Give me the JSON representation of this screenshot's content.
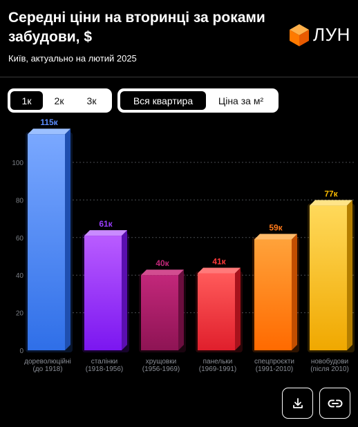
{
  "header": {
    "title": "Середні ціни на вторинці за роками забудови, $",
    "subtitle": "Київ, актуально на лютий 2025",
    "logo_text": "ЛУН"
  },
  "controls": {
    "rooms": [
      {
        "label": "1к",
        "active": true
      },
      {
        "label": "2к",
        "active": false
      },
      {
        "label": "3к",
        "active": false
      }
    ],
    "mode": [
      {
        "label": "Вся квартира",
        "active": true
      },
      {
        "label": "Ціна за м²",
        "active": false
      }
    ]
  },
  "actions": {
    "download_icon": "download-icon",
    "link_icon": "link-icon"
  },
  "chart_data": {
    "type": "bar",
    "categories": [
      [
        "дореволюційні",
        "(до 1918)"
      ],
      [
        "сталінки",
        "(1918-1956)"
      ],
      [
        "хрущовки",
        "(1956-1969)"
      ],
      [
        "панельки",
        "(1969-1991)"
      ],
      [
        "спецпроєкти",
        "(1991-2010)"
      ],
      [
        "новобудови",
        "(після 2010)"
      ]
    ],
    "values": [
      115,
      61,
      40,
      41,
      59,
      77
    ],
    "value_labels": [
      "115к",
      "61к",
      "40к",
      "41к",
      "59к",
      "77к"
    ],
    "colors": [
      {
        "top": "#7aa8ff",
        "bottom": "#2f6fe8",
        "side": "#1f4fb0",
        "cap": "#9cc0ff",
        "label": "#5b8dff"
      },
      {
        "top": "#b95cff",
        "bottom": "#7b16f0",
        "side": "#5a0fb0",
        "cap": "#c98bff",
        "label": "#9b3dff"
      },
      {
        "top": "#c2277a",
        "bottom": "#8e1454",
        "side": "#6a0e3e",
        "cap": "#d24d90",
        "label": "#c2277a"
      },
      {
        "top": "#ff5a5a",
        "bottom": "#e01f2c",
        "side": "#a8121c",
        "cap": "#ff7a7a",
        "label": "#ff3a3a"
      },
      {
        "top": "#ffa23a",
        "bottom": "#ff6a00",
        "side": "#c24e00",
        "cap": "#ffbb6a",
        "label": "#ff7a1a"
      },
      {
        "top": "#ffd95a",
        "bottom": "#f0a800",
        "side": "#b47e00",
        "cap": "#ffe488",
        "label": "#f5b800"
      }
    ],
    "yticks": [
      0,
      20,
      40,
      60,
      80,
      100
    ],
    "ylim": [
      0,
      120
    ],
    "grid": true,
    "title": "",
    "xlabel": "",
    "ylabel": ""
  }
}
